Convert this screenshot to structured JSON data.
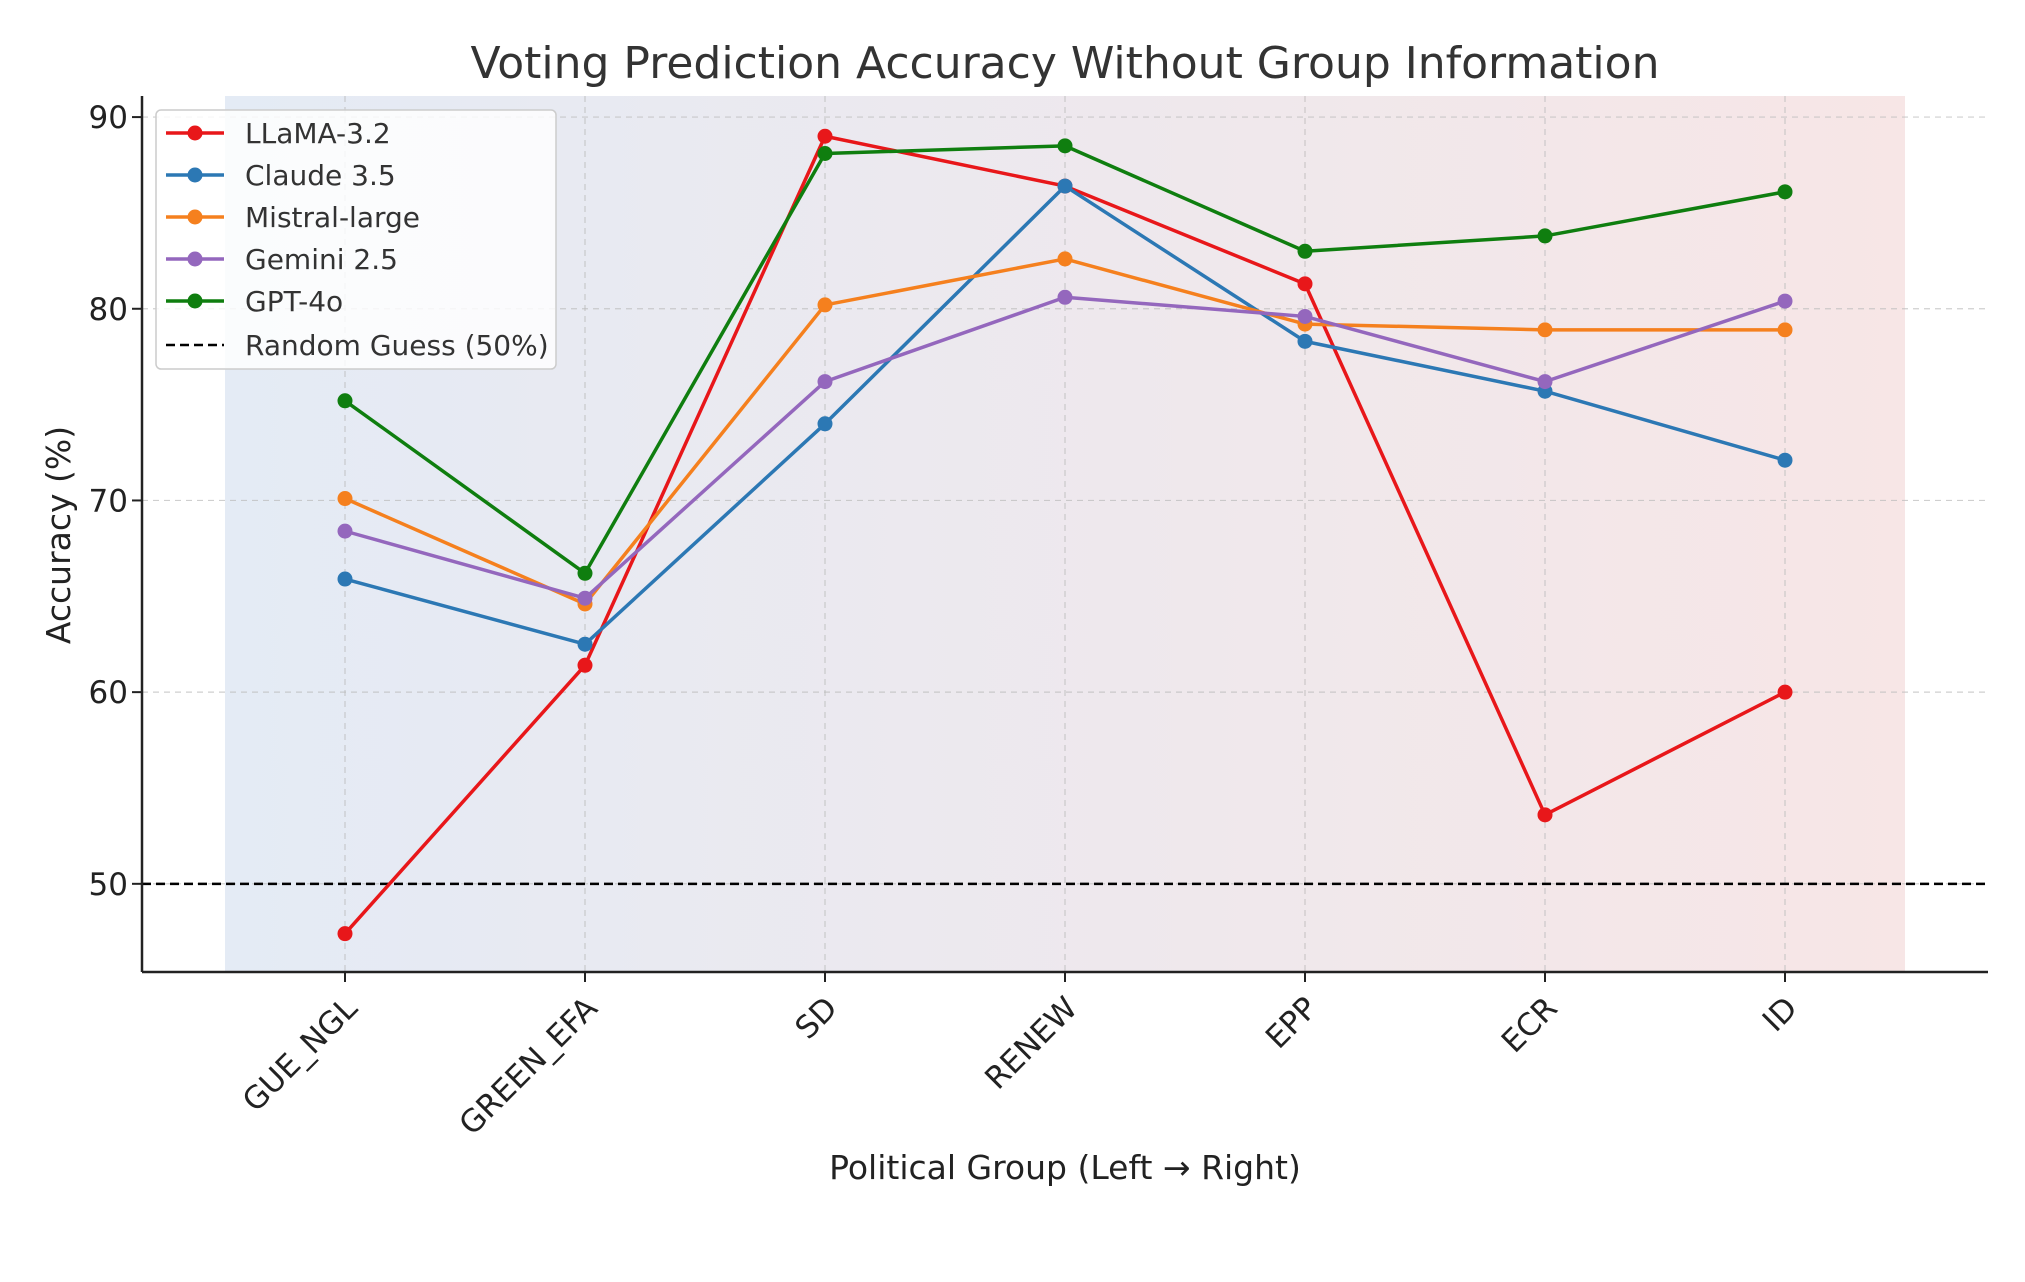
{
  "chart_data": {
    "type": "line",
    "title": "Voting Prediction Accuracy Without Group Information",
    "xlabel": "Political Group (Left → Right)",
    "ylabel": "Accuracy (%)",
    "categories": [
      "GUE_NGL",
      "GREEN_EFA",
      "SD",
      "RENEW",
      "EPP",
      "ECR",
      "ID"
    ],
    "ylim": [
      45.4,
      91.1
    ],
    "yticks": [
      50,
      60,
      70,
      80,
      90
    ],
    "grid": true,
    "legend_position": "top-left",
    "background_gradient": [
      "#e4ebf5",
      "#f7e6e6"
    ],
    "series": [
      {
        "name": "LLaMA-3.2",
        "color": "#e8171a",
        "values": [
          47.4,
          61.4,
          89.0,
          86.4,
          81.3,
          53.6,
          60.0
        ]
      },
      {
        "name": "Claude 3.5",
        "color": "#2c78b4",
        "values": [
          65.9,
          62.5,
          74.0,
          86.4,
          78.3,
          75.7,
          72.1
        ]
      },
      {
        "name": "Mistral-large",
        "color": "#f5801e",
        "values": [
          70.1,
          64.6,
          80.2,
          82.6,
          79.2,
          78.9,
          78.9
        ]
      },
      {
        "name": "Gemini 2.5",
        "color": "#9467bd",
        "values": [
          68.4,
          64.9,
          76.2,
          80.6,
          79.6,
          76.2,
          80.4
        ]
      },
      {
        "name": "GPT-4o",
        "color": "#0f7e0f",
        "values": [
          75.2,
          66.2,
          88.1,
          88.5,
          83.0,
          83.8,
          86.1
        ]
      }
    ],
    "reference_line": {
      "name": "Random Guess (50%)",
      "value": 50,
      "style": "dashed",
      "color": "#000000"
    }
  }
}
